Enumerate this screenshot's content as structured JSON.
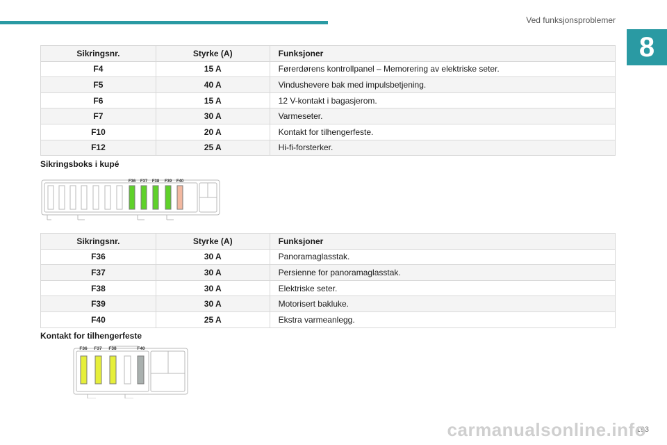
{
  "header": {
    "running_head": "Ved funksjonsproblemer",
    "chapter_number": "8",
    "accent_color": "#2a9aa3"
  },
  "table1": {
    "headers": [
      "Sikringsnr.",
      "Styrke (A)",
      "Funksjoner"
    ],
    "rows": [
      [
        "F4",
        "15 A",
        "Førerdørens kontrollpanel – Memorering av elektriske seter."
      ],
      [
        "F5",
        "40 A",
        "Vindushevere bak med impulsbetjening."
      ],
      [
        "F6",
        "15 A",
        "12 V-kontakt i bagasjerom."
      ],
      [
        "F7",
        "30 A",
        "Varmeseter."
      ],
      [
        "F10",
        "20 A",
        "Kontakt for tilhengerfeste."
      ],
      [
        "F12",
        "25 A",
        "Hi-fi-forsterker."
      ]
    ]
  },
  "section1": {
    "heading": "Sikringsboks i kupé"
  },
  "diagram1": {
    "labels": [
      "F36",
      "F37",
      "F38",
      "F39",
      "F40"
    ],
    "highlight_colors": [
      "#5fd12a",
      "#5fd12a",
      "#5fd12a",
      "#5fd12a",
      "#f2b8a0"
    ]
  },
  "table2": {
    "headers": [
      "Sikringsnr.",
      "Styrke (A)",
      "Funksjoner"
    ],
    "rows": [
      [
        "F36",
        "30 A",
        "Panoramaglasstak."
      ],
      [
        "F37",
        "30 A",
        "Persienne for panoramaglasstak."
      ],
      [
        "F38",
        "30 A",
        "Elektriske seter."
      ],
      [
        "F39",
        "30 A",
        "Motorisert bakluke."
      ],
      [
        "F40",
        "25 A",
        "Ekstra varmeanlegg."
      ]
    ]
  },
  "section2": {
    "heading": "Kontakt for tilhengerfeste"
  },
  "diagram2": {
    "labels": [
      "F36",
      "F37",
      "F38",
      "F40"
    ],
    "highlight_colors": [
      "#e6ef3a",
      "#e6ef3a",
      "#e6ef3a",
      "#a9b0ae"
    ]
  },
  "footer": {
    "page_number": "193",
    "watermark": "carmanualsonline.info"
  }
}
